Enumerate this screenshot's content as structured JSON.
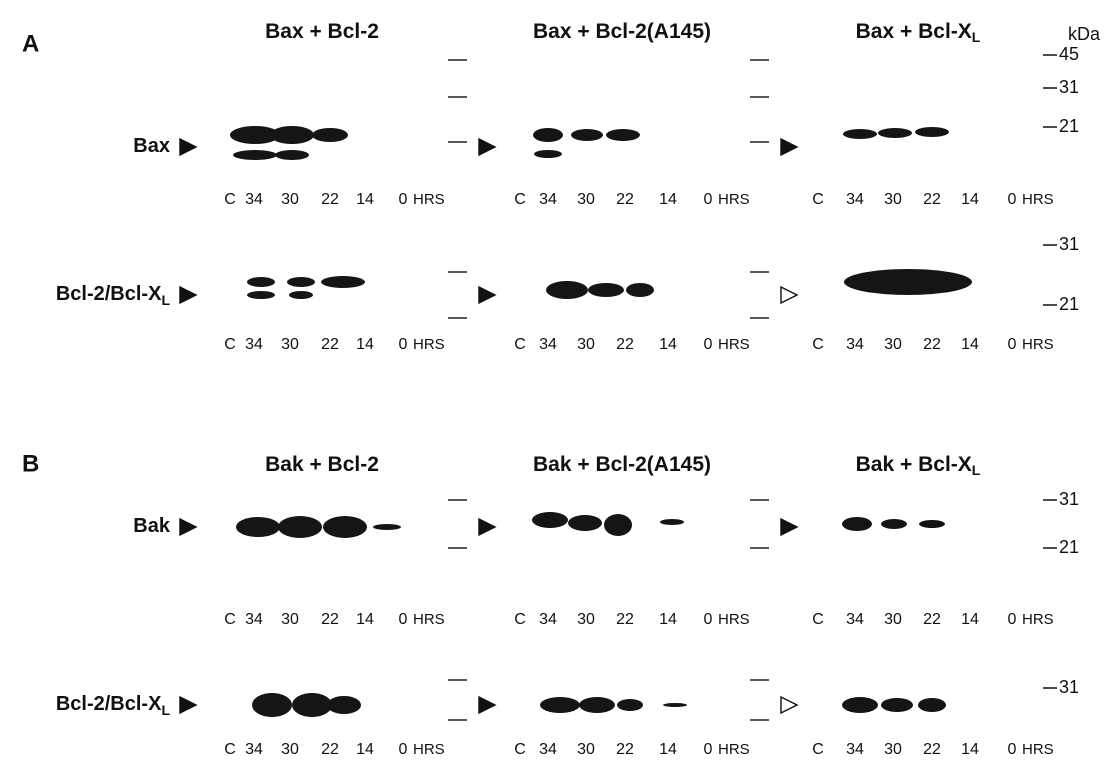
{
  "panels": [
    {
      "label": "A",
      "columns": [
        {
          "text": "Bax + Bcl-2"
        },
        {
          "text": "Bax + Bcl-2(A145)"
        },
        {
          "text": "Bax + Bcl-X",
          "sub": "L"
        }
      ],
      "rows": [
        {
          "label": "Bax",
          "markers": [
            45,
            31,
            21
          ]
        },
        {
          "label": "Bcl-2/Bcl-X",
          "sub": "L",
          "markers": [
            31,
            21
          ]
        }
      ]
    },
    {
      "label": "B",
      "columns": [
        {
          "text": "Bak + Bcl-2"
        },
        {
          "text": "Bak + Bcl-2(A145)"
        },
        {
          "text": "Bak + Bcl-X",
          "sub": "L"
        }
      ],
      "rows": [
        {
          "label": "Bak",
          "markers": [
            31,
            21
          ]
        },
        {
          "label": "Bcl-2/Bcl-X",
          "sub": "L",
          "markers": [
            31
          ]
        }
      ]
    }
  ],
  "unit": "kDa",
  "lanes": [
    "C",
    "34",
    "30",
    "22",
    "14",
    "0"
  ],
  "lane_unit": "HRS"
}
